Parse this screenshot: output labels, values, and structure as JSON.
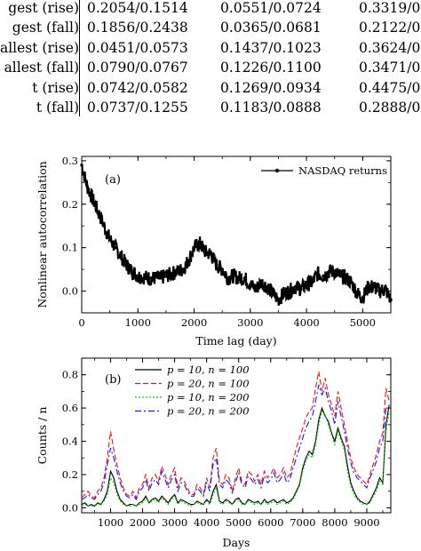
{
  "table": {
    "rows": [
      {
        "label": "gest (rise)",
        "values": [
          "0.2054/0.1514",
          "0.0551/0.0724",
          "0.3319/0"
        ]
      },
      {
        "label": "gest (fall)",
        "values": [
          "0.1856/0.2438",
          "0.0365/0.0681",
          "0.2122/0"
        ]
      },
      {
        "label": "allest (rise)",
        "values": [
          "0.0451/0.0573",
          "0.1437/0.1023",
          "0.3624/0"
        ]
      },
      {
        "label": "allest (fall)",
        "values": [
          "0.0790/0.0767",
          "0.1226/0.1100",
          "0.3471/0"
        ]
      },
      {
        "label": "t (rise)",
        "values": [
          "0.0742/0.0582",
          "0.1269/0.0934",
          "0.4475/0"
        ]
      },
      {
        "label": "t (fall)",
        "values": [
          "0.0737/0.1255",
          "0.1183/0.0888",
          "0.2888/0"
        ]
      }
    ]
  },
  "chart_data": [
    {
      "type": "line",
      "panel_label": "(a)",
      "xlabel": "Time lag (day)",
      "ylabel": "Nonlinear autocorrelation",
      "xlim": [
        0,
        5500
      ],
      "ylim": [
        -0.05,
        0.31
      ],
      "xticks": [
        0,
        1000,
        2000,
        3000,
        4000,
        5000
      ],
      "yticks": [
        0.0,
        0.1,
        0.2,
        0.3
      ],
      "ytick_labels": [
        "0.0",
        "0.1",
        "0.2",
        "0.3"
      ],
      "legend": "top-right",
      "series": [
        {
          "name": "NASDAQ returns",
          "color": "#000000",
          "x": [
            0,
            100,
            200,
            300,
            400,
            500,
            600,
            700,
            800,
            900,
            1000,
            1200,
            1400,
            1600,
            1800,
            1900,
            2000,
            2100,
            2200,
            2300,
            2400,
            2500,
            2600,
            2700,
            2800,
            2900,
            3000,
            3100,
            3200,
            3300,
            3400,
            3500,
            3600,
            3700,
            3800,
            3900,
            4000,
            4100,
            4200,
            4300,
            4400,
            4500,
            4600,
            4700,
            4800,
            4900,
            5000,
            5100,
            5200,
            5300,
            5400,
            5500
          ],
          "y": [
            0.29,
            0.24,
            0.21,
            0.18,
            0.15,
            0.12,
            0.1,
            0.08,
            0.06,
            0.045,
            0.035,
            0.03,
            0.03,
            0.04,
            0.05,
            0.07,
            0.1,
            0.11,
            0.09,
            0.085,
            0.06,
            0.05,
            0.03,
            0.035,
            0.03,
            0.03,
            0.015,
            0.005,
            0.02,
            0.01,
            -0.005,
            -0.02,
            -0.005,
            0.0,
            0.01,
            0.005,
            0.015,
            0.02,
            0.04,
            0.035,
            0.045,
            0.045,
            0.035,
            0.03,
            0.02,
            -0.005,
            -0.015,
            0.01,
            0.01,
            0.0,
            0.005,
            -0.02
          ]
        }
      ]
    },
    {
      "type": "line",
      "panel_label": "(b)",
      "xlabel": "Days",
      "ylabel": "Counts / n",
      "xlim": [
        100,
        9750
      ],
      "ylim": [
        -0.03,
        0.9
      ],
      "xticks": [
        1000,
        2000,
        3000,
        4000,
        5000,
        6000,
        7000,
        8000,
        9000
      ],
      "yticks": [
        0.0,
        0.2,
        0.4,
        0.6,
        0.8
      ],
      "ytick_labels": [
        "0.0",
        "0.2",
        "0.4",
        "0.6",
        "0.8"
      ],
      "legend": "top-left",
      "x": [
        100,
        200,
        300,
        400,
        500,
        600,
        700,
        800,
        900,
        1000,
        1100,
        1200,
        1300,
        1400,
        1500,
        1600,
        1700,
        1800,
        1900,
        2000,
        2100,
        2200,
        2300,
        2400,
        2500,
        2600,
        2700,
        2800,
        2900,
        3000,
        3100,
        3200,
        3300,
        3400,
        3500,
        3600,
        3700,
        3800,
        3900,
        4000,
        4100,
        4200,
        4300,
        4400,
        4500,
        4600,
        4700,
        4800,
        4900,
        5000,
        5100,
        5200,
        5300,
        5400,
        5500,
        5600,
        5700,
        5800,
        5900,
        6000,
        6100,
        6200,
        6300,
        6400,
        6500,
        6600,
        6700,
        6800,
        6900,
        7000,
        7100,
        7200,
        7300,
        7400,
        7500,
        7600,
        7700,
        7800,
        7900,
        8000,
        8100,
        8200,
        8300,
        8400,
        8500,
        8600,
        8700,
        8800,
        8900,
        9000,
        9100,
        9200,
        9300,
        9400,
        9500,
        9600,
        9700
      ],
      "series": [
        {
          "name": "p = 10, n = 100",
          "color": "#000000",
          "dash": "solid",
          "values": [
            0.02,
            0.03,
            0.01,
            0.02,
            0.01,
            0.03,
            0.02,
            0.05,
            0.1,
            0.22,
            0.18,
            0.1,
            0.05,
            0.03,
            0.01,
            0.02,
            0.02,
            0.01,
            0.03,
            0.04,
            0.07,
            0.03,
            0.05,
            0.06,
            0.04,
            0.07,
            0.05,
            0.03,
            0.06,
            0.08,
            0.03,
            0.05,
            0.04,
            0.03,
            0.02,
            0.02,
            0.04,
            0.03,
            0.02,
            0.05,
            0.03,
            0.1,
            0.14,
            0.04,
            0.03,
            0.05,
            0.04,
            0.02,
            0.05,
            0.06,
            0.03,
            0.02,
            0.05,
            0.04,
            0.03,
            0.04,
            0.02,
            0.05,
            0.03,
            0.04,
            0.05,
            0.03,
            0.04,
            0.05,
            0.03,
            0.04,
            0.06,
            0.1,
            0.14,
            0.24,
            0.3,
            0.34,
            0.32,
            0.4,
            0.53,
            0.6,
            0.55,
            0.52,
            0.45,
            0.4,
            0.48,
            0.42,
            0.37,
            0.25,
            0.15,
            0.1,
            0.06,
            0.04,
            0.03,
            0.02,
            0.04,
            0.08,
            0.12,
            0.18,
            0.15,
            0.5,
            0.62
          ]
        },
        {
          "name": "p = 20, n = 100",
          "color": "#e8141b",
          "dash": "dashed",
          "values": [
            0.06,
            0.08,
            0.1,
            0.07,
            0.06,
            0.1,
            0.12,
            0.18,
            0.3,
            0.46,
            0.35,
            0.26,
            0.18,
            0.12,
            0.08,
            0.07,
            0.1,
            0.06,
            0.12,
            0.14,
            0.2,
            0.12,
            0.18,
            0.2,
            0.16,
            0.25,
            0.2,
            0.14,
            0.2,
            0.24,
            0.12,
            0.18,
            0.16,
            0.12,
            0.08,
            0.08,
            0.14,
            0.12,
            0.08,
            0.18,
            0.12,
            0.3,
            0.36,
            0.16,
            0.14,
            0.2,
            0.18,
            0.1,
            0.18,
            0.24,
            0.16,
            0.14,
            0.22,
            0.2,
            0.16,
            0.2,
            0.14,
            0.22,
            0.18,
            0.2,
            0.24,
            0.18,
            0.2,
            0.24,
            0.18,
            0.2,
            0.28,
            0.36,
            0.42,
            0.48,
            0.54,
            0.58,
            0.6,
            0.72,
            0.82,
            0.7,
            0.78,
            0.68,
            0.62,
            0.55,
            0.7,
            0.6,
            0.5,
            0.4,
            0.3,
            0.24,
            0.2,
            0.18,
            0.16,
            0.14,
            0.2,
            0.26,
            0.32,
            0.4,
            0.45,
            0.72,
            0.64
          ]
        },
        {
          "name": "p = 10, n = 200",
          "color": "#10c010",
          "dash": "dotted",
          "values": [
            0.01,
            0.02,
            0.01,
            0.01,
            0.01,
            0.02,
            0.02,
            0.04,
            0.08,
            0.18,
            0.15,
            0.08,
            0.04,
            0.02,
            0.01,
            0.01,
            0.02,
            0.01,
            0.02,
            0.03,
            0.06,
            0.03,
            0.04,
            0.05,
            0.03,
            0.06,
            0.04,
            0.02,
            0.05,
            0.07,
            0.02,
            0.04,
            0.03,
            0.02,
            0.01,
            0.02,
            0.03,
            0.02,
            0.02,
            0.04,
            0.02,
            0.08,
            0.12,
            0.03,
            0.02,
            0.04,
            0.03,
            0.02,
            0.04,
            0.05,
            0.02,
            0.02,
            0.04,
            0.03,
            0.02,
            0.03,
            0.02,
            0.04,
            0.02,
            0.03,
            0.04,
            0.02,
            0.03,
            0.04,
            0.02,
            0.03,
            0.05,
            0.09,
            0.13,
            0.22,
            0.28,
            0.32,
            0.3,
            0.38,
            0.5,
            0.58,
            0.56,
            0.5,
            0.44,
            0.38,
            0.46,
            0.4,
            0.35,
            0.22,
            0.13,
            0.08,
            0.05,
            0.03,
            0.02,
            0.02,
            0.03,
            0.07,
            0.1,
            0.16,
            0.14,
            0.46,
            0.58
          ]
        },
        {
          "name": "p = 20, n = 200",
          "color": "#1a1adc",
          "dash": "dashdot",
          "values": [
            0.05,
            0.06,
            0.08,
            0.06,
            0.05,
            0.08,
            0.1,
            0.15,
            0.26,
            0.36,
            0.3,
            0.22,
            0.15,
            0.1,
            0.07,
            0.06,
            0.08,
            0.05,
            0.1,
            0.12,
            0.17,
            0.1,
            0.15,
            0.17,
            0.14,
            0.22,
            0.17,
            0.12,
            0.17,
            0.2,
            0.1,
            0.15,
            0.14,
            0.1,
            0.07,
            0.07,
            0.12,
            0.1,
            0.07,
            0.15,
            0.1,
            0.26,
            0.3,
            0.14,
            0.12,
            0.17,
            0.15,
            0.09,
            0.15,
            0.21,
            0.14,
            0.12,
            0.19,
            0.17,
            0.14,
            0.17,
            0.12,
            0.19,
            0.15,
            0.17,
            0.21,
            0.15,
            0.17,
            0.21,
            0.15,
            0.17,
            0.24,
            0.3,
            0.36,
            0.42,
            0.48,
            0.52,
            0.55,
            0.64,
            0.74,
            0.68,
            0.72,
            0.64,
            0.58,
            0.5,
            0.64,
            0.55,
            0.46,
            0.36,
            0.27,
            0.21,
            0.18,
            0.16,
            0.14,
            0.12,
            0.18,
            0.23,
            0.28,
            0.36,
            0.4,
            0.6,
            0.6
          ]
        }
      ]
    }
  ]
}
